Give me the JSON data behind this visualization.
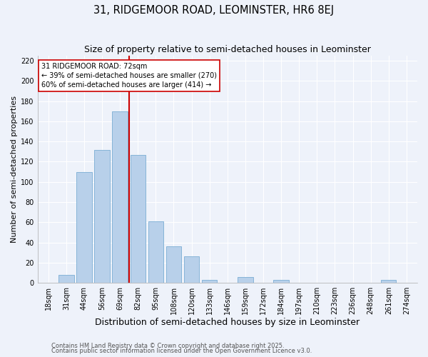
{
  "title": "31, RIDGEMOOR ROAD, LEOMINSTER, HR6 8EJ",
  "subtitle": "Size of property relative to semi-detached houses in Leominster",
  "xlabel": "Distribution of semi-detached houses by size in Leominster",
  "ylabel": "Number of semi-detached properties",
  "bin_labels": [
    "18sqm",
    "31sqm",
    "44sqm",
    "56sqm",
    "69sqm",
    "82sqm",
    "95sqm",
    "108sqm",
    "120sqm",
    "133sqm",
    "146sqm",
    "159sqm",
    "172sqm",
    "184sqm",
    "197sqm",
    "210sqm",
    "223sqm",
    "236sqm",
    "248sqm",
    "261sqm",
    "274sqm"
  ],
  "bar_heights": [
    0,
    8,
    110,
    132,
    170,
    127,
    61,
    36,
    26,
    3,
    0,
    6,
    0,
    3,
    0,
    0,
    0,
    0,
    0,
    3,
    0
  ],
  "bar_color": "#b8d0ea",
  "bar_edge_color": "#7aadd4",
  "property_line_x": 4.5,
  "ylim": [
    0,
    225
  ],
  "yticks": [
    0,
    20,
    40,
    60,
    80,
    100,
    120,
    140,
    160,
    180,
    200,
    220
  ],
  "annotation_title": "31 RIDGEMOOR ROAD: 72sqm",
  "annotation_line1": "← 39% of semi-detached houses are smaller (270)",
  "annotation_line2": "60% of semi-detached houses are larger (414) →",
  "annotation_box_color": "#ffffff",
  "annotation_box_edge": "#cc0000",
  "vline_color": "#cc0000",
  "background_color": "#eef2fa",
  "grid_color": "#ffffff",
  "footnote1": "Contains HM Land Registry data © Crown copyright and database right 2025.",
  "footnote2": "Contains public sector information licensed under the Open Government Licence v3.0.",
  "title_fontsize": 10.5,
  "subtitle_fontsize": 9,
  "xlabel_fontsize": 9,
  "ylabel_fontsize": 8,
  "tick_fontsize": 7,
  "annotation_fontsize": 7,
  "footnote_fontsize": 6
}
